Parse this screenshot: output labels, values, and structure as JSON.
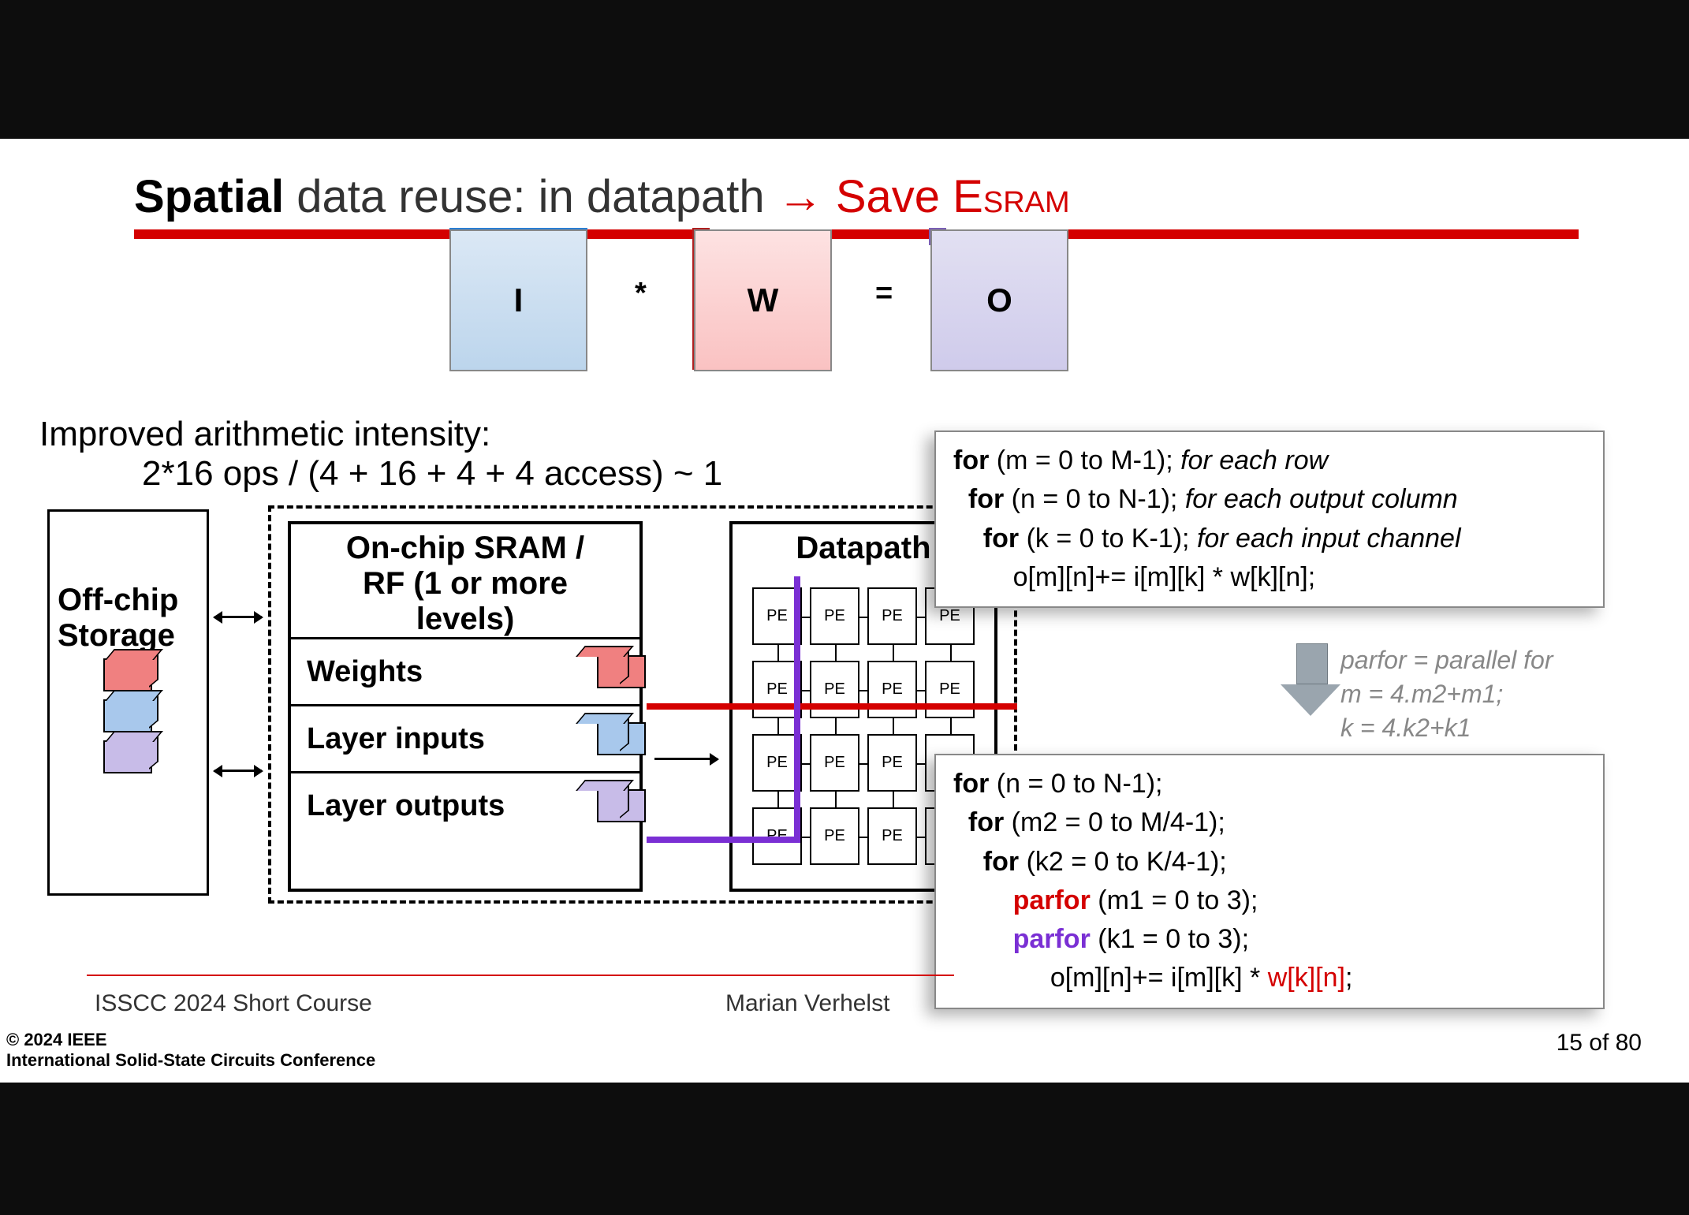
{
  "title": {
    "bold": "Spatial",
    "rest": " data reuse: in datapath ",
    "arrow": "→",
    "save": " Save E",
    "sub": "SRAM"
  },
  "matrices": {
    "I": "I",
    "W": "W",
    "O": "O",
    "star": "*",
    "eq": "="
  },
  "intensity": {
    "l1": "Improved arithmetic intensity:",
    "l2": "2*16 ops / (4 + 16 + 4 + 4 access) ~ 1"
  },
  "offchip": {
    "l1": "Off-chip",
    "l2": "Storage"
  },
  "sram": {
    "title1": "On-chip SRAM /",
    "title2": "RF (1 or more",
    "title3": "levels)",
    "r1": "Weights",
    "r2": "Layer inputs",
    "r3": "Layer outputs"
  },
  "datapath": {
    "title": "Datapath",
    "pe": "PE"
  },
  "code1": {
    "l1a": "for",
    "l1b": " (m = 0 to M-1); ",
    "l1c": "for each row",
    "l2a": "for",
    "l2b": " (n = 0 to N-1); ",
    "l2c": "for each output column",
    "l3a": "for",
    "l3b": " (k = 0 to K-1); ",
    "l3c": "for each input channel",
    "l4": "o[m][n]+= i[m][k] * w[k][n];"
  },
  "arnote": {
    "l1": "parfor = parallel for",
    "l2": "m = 4.m2+m1;",
    "l3": "k = 4.k2+k1"
  },
  "code2": {
    "l1a": "for",
    "l1b": " (n = 0 to N-1);",
    "l2a": "for",
    "l2b": " (m2 = 0 to M/4-1);",
    "l3a": "for",
    "l3b": " (k2 = 0 to K/4-1);",
    "l4a": "parfor",
    "l4b": " (m1 = 0 to 3);",
    "l5a": "parfor",
    "l5b": " (k1 = 0 to 3);",
    "l6a": "o[m][n]+= i[m][k] * ",
    "l6b": "w[k][n]",
    "l6c": ";"
  },
  "footer": {
    "course": "ISSCC 2024 Short Course",
    "author": "Marian Verhelst",
    "copy1": "© 2024 IEEE",
    "copy2": "International Solid-State Circuits Conference",
    "page": "15 of 80"
  }
}
